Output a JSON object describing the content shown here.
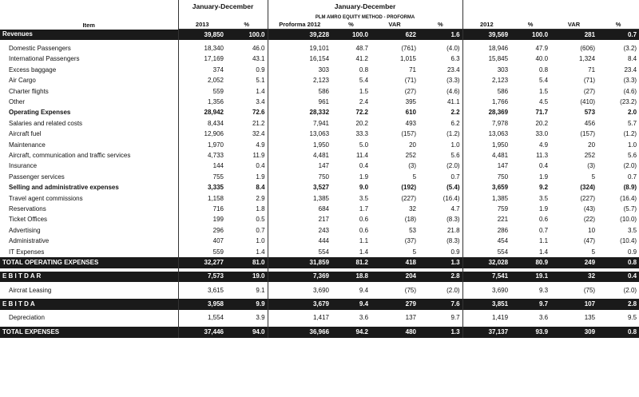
{
  "header": {
    "item_label": "Item",
    "group1_title": "January-December",
    "group2_title": "January-December",
    "group2_subtitle": "PLM AMRO EQUITY METHOD - PROFORMA",
    "columns": [
      "2013",
      "%",
      "Proforma 2012",
      "%",
      "VAR",
      "%",
      "2012",
      "%",
      "VAR",
      "%"
    ]
  },
  "rows": [
    {
      "type": "dark",
      "label": "Revenues",
      "v": [
        "39,850",
        "100.0",
        "39,228",
        "100.0",
        "622",
        "1.6",
        "39,569",
        "100.0",
        "281",
        "0.7"
      ]
    },
    {
      "type": "spacer"
    },
    {
      "type": "item",
      "label": "Domestic Passengers",
      "v": [
        "18,340",
        "46.0",
        "19,101",
        "48.7",
        "(761)",
        "(4.0)",
        "18,946",
        "47.9",
        "(606)",
        "(3.2)"
      ]
    },
    {
      "type": "item",
      "label": "International Passengers",
      "v": [
        "17,169",
        "43.1",
        "16,154",
        "41.2",
        "1,015",
        "6.3",
        "15,845",
        "40.0",
        "1,324",
        "8.4"
      ]
    },
    {
      "type": "item",
      "label": "Excess baggage",
      "v": [
        "374",
        "0.9",
        "303",
        "0.8",
        "71",
        "23.4",
        "303",
        "0.8",
        "71",
        "23.4"
      ]
    },
    {
      "type": "item",
      "label": "Air Cargo",
      "v": [
        "2,052",
        "5.1",
        "2,123",
        "5.4",
        "(71)",
        "(3.3)",
        "2,123",
        "5.4",
        "(71)",
        "(3.3)"
      ]
    },
    {
      "type": "item",
      "label": "Charter flights",
      "v": [
        "559",
        "1.4",
        "586",
        "1.5",
        "(27)",
        "(4.6)",
        "586",
        "1.5",
        "(27)",
        "(4.6)"
      ]
    },
    {
      "type": "item",
      "label": "Other",
      "v": [
        "1,356",
        "3.4",
        "961",
        "2.4",
        "395",
        "41.1",
        "1,766",
        "4.5",
        "(410)",
        "(23.2)"
      ]
    },
    {
      "type": "bold",
      "label": "Operating Expenses",
      "v": [
        "28,942",
        "72.6",
        "28,332",
        "72.2",
        "610",
        "2.2",
        "28,369",
        "71.7",
        "573",
        "2.0"
      ]
    },
    {
      "type": "item",
      "label": "Salaries and related costs",
      "v": [
        "8,434",
        "21.2",
        "7,941",
        "20.2",
        "493",
        "6.2",
        "7,978",
        "20.2",
        "456",
        "5.7"
      ]
    },
    {
      "type": "item",
      "label": "Aircraft fuel",
      "v": [
        "12,906",
        "32.4",
        "13,063",
        "33.3",
        "(157)",
        "(1.2)",
        "13,063",
        "33.0",
        "(157)",
        "(1.2)"
      ]
    },
    {
      "type": "item",
      "label": "Maintenance",
      "v": [
        "1,970",
        "4.9",
        "1,950",
        "5.0",
        "20",
        "1.0",
        "1,950",
        "4.9",
        "20",
        "1.0"
      ]
    },
    {
      "type": "item",
      "label": "Aircraft, communication and traffic services",
      "v": [
        "4,733",
        "11.9",
        "4,481",
        "11.4",
        "252",
        "5.6",
        "4,481",
        "11.3",
        "252",
        "5.6"
      ]
    },
    {
      "type": "item",
      "label": "Insurance",
      "v": [
        "144",
        "0.4",
        "147",
        "0.4",
        "(3)",
        "(2.0)",
        "147",
        "0.4",
        "(3)",
        "(2.0)"
      ]
    },
    {
      "type": "item",
      "label": "Passenger services",
      "v": [
        "755",
        "1.9",
        "750",
        "1.9",
        "5",
        "0.7",
        "750",
        "1.9",
        "5",
        "0.7"
      ]
    },
    {
      "type": "bold",
      "label": "Selling and administrative expenses",
      "v": [
        "3,335",
        "8.4",
        "3,527",
        "9.0",
        "(192)",
        "(5.4)",
        "3,659",
        "9.2",
        "(324)",
        "(8.9)"
      ]
    },
    {
      "type": "item",
      "label": "Travel agent commissions",
      "v": [
        "1,158",
        "2.9",
        "1,385",
        "3.5",
        "(227)",
        "(16.4)",
        "1,385",
        "3.5",
        "(227)",
        "(16.4)"
      ]
    },
    {
      "type": "item",
      "label": "Reservations",
      "v": [
        "716",
        "1.8",
        "684",
        "1.7",
        "32",
        "4.7",
        "759",
        "1.9",
        "(43)",
        "(5.7)"
      ]
    },
    {
      "type": "item",
      "label": "Ticket Offices",
      "v": [
        "199",
        "0.5",
        "217",
        "0.6",
        "(18)",
        "(8.3)",
        "221",
        "0.6",
        "(22)",
        "(10.0)"
      ]
    },
    {
      "type": "item",
      "label": "Advertising",
      "v": [
        "296",
        "0.7",
        "243",
        "0.6",
        "53",
        "21.8",
        "286",
        "0.7",
        "10",
        "3.5"
      ]
    },
    {
      "type": "item",
      "label": "Administrative",
      "v": [
        "407",
        "1.0",
        "444",
        "1.1",
        "(37)",
        "(8.3)",
        "454",
        "1.1",
        "(47)",
        "(10.4)"
      ]
    },
    {
      "type": "item",
      "label": "IT Expenses",
      "v": [
        "559",
        "1.4",
        "554",
        "1.4",
        "5",
        "0.9",
        "554",
        "1.4",
        "5",
        "0.9"
      ]
    },
    {
      "type": "dark",
      "label": "TOTAL OPERATING EXPENSES",
      "v": [
        "32,277",
        "81.0",
        "31,859",
        "81.2",
        "418",
        "1.3",
        "32,028",
        "80.9",
        "249",
        "0.8"
      ]
    },
    {
      "type": "spacer"
    },
    {
      "type": "dark",
      "label": "E B I T D A R",
      "v": [
        "7,573",
        "19.0",
        "7,369",
        "18.8",
        "204",
        "2.8",
        "7,541",
        "19.1",
        "32",
        "0.4"
      ]
    },
    {
      "type": "spacer"
    },
    {
      "type": "plain",
      "label": "Aircrat Leasing",
      "v": [
        "3,615",
        "9.1",
        "3,690",
        "9.4",
        "(75)",
        "(2.0)",
        "3,690",
        "9.3",
        "(75)",
        "(2.0)"
      ]
    },
    {
      "type": "spacer"
    },
    {
      "type": "dark",
      "label": "E B I T D A",
      "v": [
        "3,958",
        "9.9",
        "3,679",
        "9.4",
        "279",
        "7.6",
        "3,851",
        "9.7",
        "107",
        "2.8"
      ]
    },
    {
      "type": "spacer"
    },
    {
      "type": "plain",
      "label": "Depreciation",
      "v": [
        "1,554",
        "3.9",
        "1,417",
        "3.6",
        "137",
        "9.7",
        "1,419",
        "3.6",
        "135",
        "9.5"
      ]
    },
    {
      "type": "spacer"
    },
    {
      "type": "dark",
      "label": "TOTAL EXPENSES",
      "v": [
        "37,446",
        "94.0",
        "36,966",
        "94.2",
        "480",
        "1.3",
        "37,137",
        "93.9",
        "309",
        "0.8"
      ]
    }
  ]
}
